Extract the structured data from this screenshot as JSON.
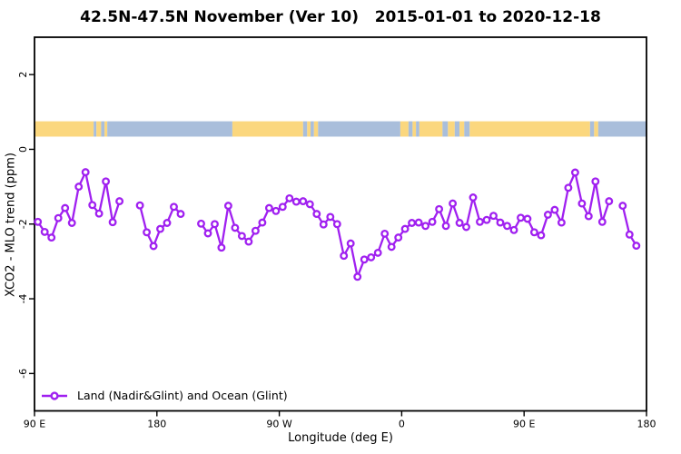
{
  "chart_data": {
    "type": "line",
    "title": "42.5N-47.5N November (Ver 10)   2015-01-01 to 2020-12-18",
    "xlabel": "Longitude (deg E)",
    "ylabel": "XCO2 - MLO trend (ppm)",
    "xlim": [
      90,
      540
    ],
    "ylim": [
      -7,
      3
    ],
    "grid": false,
    "x_ticks": [
      {
        "value": 90,
        "label": "90 E"
      },
      {
        "value": 180,
        "label": "180"
      },
      {
        "value": 270,
        "label": "90 W"
      },
      {
        "value": 360,
        "label": "0"
      },
      {
        "value": 450,
        "label": "90 E"
      },
      {
        "value": 540,
        "label": "180"
      }
    ],
    "y_ticks": [
      {
        "value": 2,
        "label": "2"
      },
      {
        "value": 0,
        "label": "0"
      },
      {
        "value": -2,
        "label": "-2"
      },
      {
        "value": -4,
        "label": "-4"
      },
      {
        "value": -6,
        "label": "-6"
      }
    ],
    "legend": {
      "position": "bottom-left",
      "entries": [
        {
          "label": "Land (Nadir&Glint) and Ocean (Glint)",
          "color": "#A020F0",
          "marker": "open-circle-on-line"
        }
      ]
    },
    "colors": {
      "series": "#A020F0",
      "land_band": "#FBD77E",
      "ocean_band": "#A9BEDB",
      "axis": "#000000"
    },
    "surface_band": {
      "description": "land/ocean surface-type strip drawn inside plot",
      "top_value": 0.75,
      "bottom_value": 0.34,
      "segments": [
        {
          "from": 90,
          "to": 133.5,
          "type": "land"
        },
        {
          "from": 133.5,
          "to": 135.5,
          "type": "ocean"
        },
        {
          "from": 135.5,
          "to": 139,
          "type": "land"
        },
        {
          "from": 139,
          "to": 141.5,
          "type": "ocean"
        },
        {
          "from": 141.5,
          "to": 143.5,
          "type": "land"
        },
        {
          "from": 143.5,
          "to": 235.5,
          "type": "ocean"
        },
        {
          "from": 235.5,
          "to": 287.5,
          "type": "land"
        },
        {
          "from": 287.5,
          "to": 290.5,
          "type": "ocean"
        },
        {
          "from": 290.5,
          "to": 293,
          "type": "land"
        },
        {
          "from": 293,
          "to": 295.5,
          "type": "ocean"
        },
        {
          "from": 295.5,
          "to": 298.5,
          "type": "land"
        },
        {
          "from": 298.5,
          "to": 359,
          "type": "ocean"
        },
        {
          "from": 359,
          "to": 365,
          "type": "land"
        },
        {
          "from": 365,
          "to": 368,
          "type": "ocean"
        },
        {
          "from": 368,
          "to": 370.5,
          "type": "land"
        },
        {
          "from": 370.5,
          "to": 373,
          "type": "ocean"
        },
        {
          "from": 373,
          "to": 390,
          "type": "land"
        },
        {
          "from": 390,
          "to": 394,
          "type": "ocean"
        },
        {
          "from": 394,
          "to": 399,
          "type": "land"
        },
        {
          "from": 399,
          "to": 402.5,
          "type": "ocean"
        },
        {
          "from": 402.5,
          "to": 406,
          "type": "land"
        },
        {
          "from": 406,
          "to": 410,
          "type": "ocean"
        },
        {
          "from": 410,
          "to": 498.5,
          "type": "land"
        },
        {
          "from": 498.5,
          "to": 501.5,
          "type": "ocean"
        },
        {
          "from": 501.5,
          "to": 504.5,
          "type": "land"
        },
        {
          "from": 504.5,
          "to": 540,
          "type": "ocean"
        }
      ]
    },
    "series": [
      {
        "name": "Land (Nadir&Glint) and Ocean (Glint)",
        "color": "#A020F0",
        "marker": "open-circle",
        "x": [
          92.5,
          97.5,
          102.5,
          107.5,
          112.5,
          117.5,
          122.5,
          127.5,
          132.5,
          137.5,
          142.5,
          147.5,
          152.5,
          157.5,
          162.5,
          167.5,
          172.5,
          177.5,
          182.5,
          187.5,
          192.5,
          197.5,
          202.5,
          207.5,
          212.5,
          217.5,
          222.5,
          227.5,
          232.5,
          237.5,
          242.5,
          247.5,
          252.5,
          257.5,
          262.5,
          267.5,
          272.5,
          277.5,
          282.5,
          287.5,
          292.5,
          297.5,
          302.5,
          307.5,
          312.5,
          317.5,
          322.5,
          327.5,
          332.5,
          337.5,
          342.5,
          347.5,
          352.5,
          357.5,
          362.5,
          367.5,
          372.5,
          377.5,
          382.5,
          387.5,
          392.5,
          397.5,
          402.5,
          407.5,
          412.5,
          417.5,
          422.5,
          427.5,
          432.5,
          437.5,
          442.5,
          447.5,
          452.5,
          457.5,
          462.5,
          467.5,
          472.5,
          477.5,
          482.5,
          487.5,
          492.5,
          497.5,
          502.5,
          507.5,
          512.5,
          517.5,
          522.5,
          527.5,
          532.5
        ],
        "y": [
          -1.94,
          -2.21,
          -2.36,
          -1.84,
          -1.57,
          -1.97,
          -1.0,
          -0.61,
          -1.49,
          -1.72,
          -0.86,
          -1.95,
          -1.39,
          null,
          null,
          -1.5,
          -2.22,
          -2.59,
          -2.13,
          -1.97,
          -1.54,
          -1.73,
          null,
          null,
          -1.99,
          -2.25,
          -2.0,
          -2.63,
          -1.51,
          -2.1,
          -2.32,
          -2.47,
          -2.18,
          -1.96,
          -1.57,
          -1.65,
          -1.54,
          -1.31,
          -1.4,
          -1.39,
          -1.47,
          -1.73,
          -2.01,
          -1.81,
          -2.0,
          -2.85,
          -2.52,
          -3.41,
          -2.95,
          -2.89,
          -2.77,
          -2.26,
          -2.61,
          -2.36,
          -2.13,
          -1.97,
          -1.96,
          -2.05,
          -1.94,
          -1.6,
          -2.05,
          -1.45,
          -1.97,
          -2.08,
          -1.29,
          -1.94,
          -1.89,
          -1.78,
          -1.96,
          -2.05,
          -2.16,
          -1.83,
          -1.86,
          -2.22,
          -2.3,
          -1.75,
          -1.62,
          -1.96,
          -1.03,
          -0.62,
          -1.45,
          -1.79,
          -0.86,
          -1.94,
          -1.39,
          null,
          -1.51,
          -2.28,
          -2.58
        ]
      }
    ]
  }
}
